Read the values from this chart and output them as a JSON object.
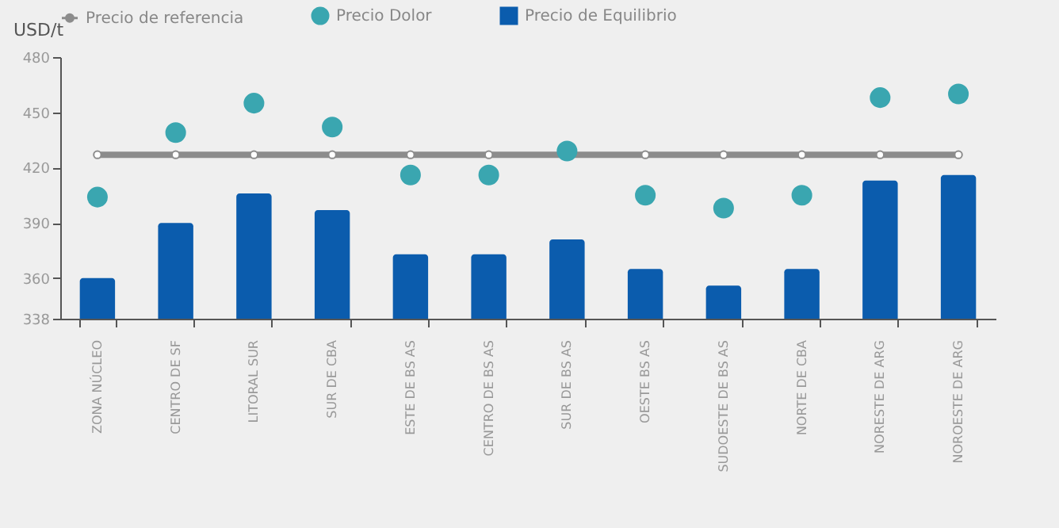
{
  "chart_data": {
    "type": "bar",
    "categories": [
      "ZONA NÚCLEO",
      "CENTRO DE SF",
      "LITORAL SUR",
      "SUR DE CBA",
      "ESTE DE BS AS",
      "CENTRO DE BS AS",
      "SUR DE BS AS",
      "OESTE BS AS",
      "SUDOESTE DE BS AS",
      "NORTE DE CBA",
      "NORESTE DE ARG",
      "NOROESTE DE ARG"
    ],
    "series": [
      {
        "name": "Precio de referencia",
        "type": "line",
        "marker": "circle",
        "color": "#8c8c8c",
        "values": [
          427,
          427,
          427,
          427,
          427,
          427,
          427,
          427,
          427,
          427,
          427,
          427
        ]
      },
      {
        "name": "Precio Dolor",
        "type": "scatter",
        "color": "#3aa6b0",
        "values": [
          404,
          439,
          455,
          442,
          416,
          416,
          429,
          405,
          398,
          405,
          458,
          460
        ]
      },
      {
        "name": "Precio de Equilibrio",
        "color": "#0b5cad",
        "values": [
          360,
          390,
          406,
          397,
          373,
          373,
          381,
          365,
          356,
          365,
          413,
          416
        ]
      }
    ],
    "ylabel": "USD/t",
    "ylim": [
      338,
      480
    ],
    "yticks": [
      338,
      360,
      390,
      420,
      450,
      480
    ],
    "legend": "top",
    "grid": false
  }
}
